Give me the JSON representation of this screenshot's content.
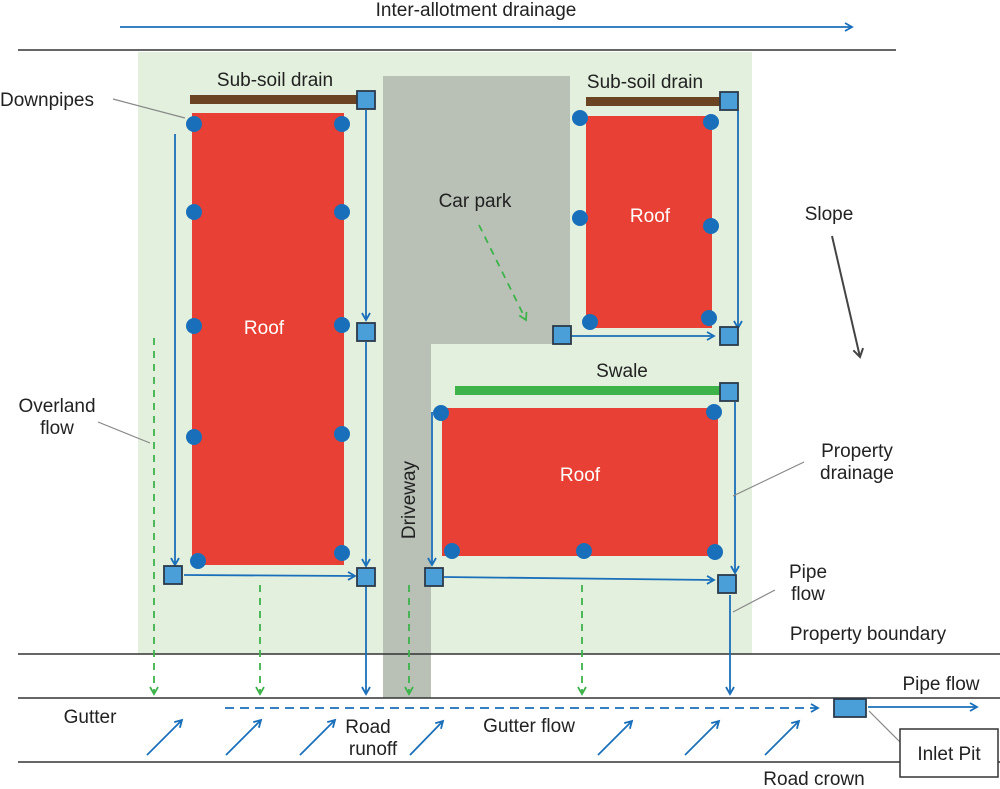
{
  "labels": {
    "inter_allotment": "Inter-allotment drainage",
    "subsoil_left": "Sub-soil drain",
    "subsoil_right": "Sub-soil drain",
    "downpipes": "Downpipes",
    "car_park": "Car park",
    "slope": "Slope",
    "roof_left": "Roof",
    "roof_top_right": "Roof",
    "roof_bottom": "Roof",
    "swale": "Swale",
    "overland_1": "Overland",
    "overland_2": "flow",
    "driveway": "Driveway",
    "property_drainage_1": "Property",
    "property_drainage_2": "drainage",
    "pipe_flow_1": "Pipe",
    "pipe_flow_2": "flow",
    "property_boundary": "Property boundary",
    "pipe_flow_out": "Pipe flow",
    "gutter": "Gutter",
    "road_runoff_1": "Road",
    "road_runoff_2": "runoff",
    "gutter_flow": "Gutter flow",
    "inlet_pit": "Inlet Pit",
    "road_crown": "Road crown"
  },
  "colors": {
    "property_fill": "#e2f0dd",
    "roof": "#e84035",
    "driveway": "#b9c1b7",
    "downpipe": "#1a6fba",
    "pit": "#4a9fd8",
    "pipe": "#1a6fba",
    "overland": "#3db34a",
    "swale": "#3db34a",
    "subsoil": "#6b4424",
    "line": "#333333"
  }
}
